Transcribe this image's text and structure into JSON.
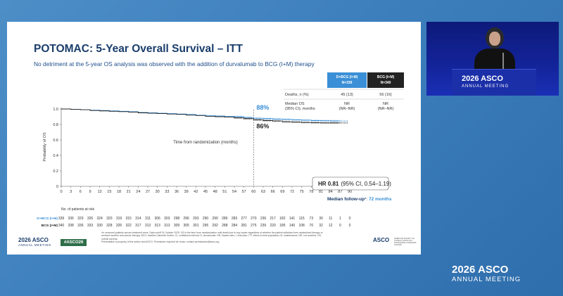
{
  "slide": {
    "title": "POTOMAC: 5-Year Overall Survival – ITT",
    "subtitle": "No detriment at the 5-year OS analysis was observed with the addition of durvalumab to BCG (I+M) therapy",
    "table": {
      "col1_line1": "D+BCG (I+M)",
      "col1_line2": "N=339",
      "col2_line1": "BCG (I+M)",
      "col2_line2": "N=340",
      "row1_label": "Deaths, n (%)",
      "row1_val1": "45 (13)",
      "row1_val2": "56 (16)",
      "row2_label1": "Median OS",
      "row2_label2": "(95% CI), months",
      "row2_val1_a": "NR",
      "row2_val1_b": "(NR–NR)",
      "row2_val2_a": "NR",
      "row2_val2_b": "(NR–NR)",
      "col1_color": "#3a8fd6",
      "col2_color": "#222222"
    },
    "hr_bold": "HR 0.81",
    "hr_rest": "(95% CI, 0.54–1.19)",
    "median_fu_label": "Median follow-up",
    "median_fu_sup": "a",
    "median_fu_sep": ": ",
    "median_fu_value": "72 months",
    "at_risk_title": "No. of patients at risk",
    "at_risk_label1": "D+BCG (I+M)",
    "at_risk_label2": "BCG (I+M)",
    "at_risk_row1": [
      "339",
      "336",
      "329",
      "326",
      "324",
      "320",
      "319",
      "315",
      "314",
      "311",
      "306",
      "303",
      "298",
      "296",
      "293",
      "290",
      "290",
      "286",
      "283",
      "277",
      "270",
      "236",
      "217",
      "182",
      "141",
      "115",
      "73",
      "30",
      "11",
      "1",
      "0"
    ],
    "at_risk_row2": [
      "340",
      "338",
      "336",
      "333",
      "330",
      "328",
      "326",
      "322",
      "317",
      "313",
      "313",
      "313",
      "309",
      "305",
      "301",
      "295",
      "292",
      "288",
      "284",
      "281",
      "275",
      "239",
      "220",
      "185",
      "140",
      "108",
      "70",
      "32",
      "12",
      "0",
      "0"
    ],
    "footnotes": [
      "ᵃIn censored patients across treatment arms. Data cutoff 31 October 2025. OS is the time from randomization until death due to any cause regardless of whether the patient withdrew from randomized therapy or",
      "receives another anti-cancer therapy. BCG, bacillus Calmette-Guérin; CI, confidence interval; D, durvalumab; HR, hazard ratio; I, induction; ITT, intent-to-treat population; M, maintenance; NR, not reached; OS,",
      "overall survival.",
      "Presentation is property of the author and ASCO. Permission required for reuse; contact permissions@asco.org"
    ],
    "logo_year": "2026",
    "logo_name": "ASCO",
    "logo_meeting": "ANNUAL MEETING",
    "hashtag": "#ASCO26",
    "asco_right_name": "ASCO",
    "asco_right_tag": "AMERICAN SOCIETY OF CLINICAL ONCOLOGY",
    "asco_right_tag2": "KNOWLEDGE CONQUERS CANCER"
  },
  "video": {
    "podium_year": "2026",
    "podium_name": "ASCO",
    "podium_meeting": "ANNUAL MEETING"
  },
  "footer": {
    "year": "2026",
    "name": "ASCO",
    "meeting": "ANNUAL MEETING"
  },
  "chart_data": {
    "type": "line",
    "xlabel": "Time from randomization (months)",
    "ylabel": "Probability of OS",
    "xlim": [
      0,
      90
    ],
    "ylim": [
      0,
      1.0
    ],
    "xticks": [
      0,
      3,
      6,
      9,
      12,
      15,
      18,
      21,
      24,
      27,
      30,
      33,
      36,
      39,
      42,
      45,
      48,
      51,
      54,
      57,
      60,
      63,
      66,
      69,
      72,
      75,
      78,
      81,
      84,
      87,
      90
    ],
    "yticks": [
      "0",
      "0.2",
      "0.4",
      "0.6",
      "0.8",
      "1.0"
    ],
    "annotations": [
      {
        "text": "88%",
        "x": 60,
        "y": 0.88,
        "color": "#3a8fd6"
      },
      {
        "text": "86%",
        "x": 60,
        "y": 0.86,
        "color": "#222222"
      }
    ],
    "reference_line_x": 60,
    "series": [
      {
        "name": "D+BCG (I+M)",
        "color": "#3a8fd6",
        "x": [
          0,
          3,
          6,
          9,
          12,
          15,
          18,
          21,
          24,
          27,
          30,
          33,
          36,
          39,
          42,
          45,
          48,
          51,
          54,
          57,
          60,
          63,
          66,
          69,
          72,
          75,
          78,
          81,
          84,
          87
        ],
        "y": [
          1.0,
          0.995,
          0.99,
          0.985,
          0.98,
          0.975,
          0.97,
          0.965,
          0.955,
          0.95,
          0.945,
          0.94,
          0.935,
          0.93,
          0.92,
          0.915,
          0.91,
          0.905,
          0.9,
          0.89,
          0.88,
          0.875,
          0.87,
          0.865,
          0.86,
          0.855,
          0.85,
          0.848,
          0.846,
          0.845
        ]
      },
      {
        "name": "BCG (I+M)",
        "color": "#222222",
        "x": [
          0,
          3,
          6,
          9,
          12,
          15,
          18,
          21,
          24,
          27,
          30,
          33,
          36,
          39,
          42,
          45,
          48,
          51,
          54,
          57,
          60,
          63,
          66,
          69,
          72,
          75,
          78,
          81,
          84,
          87
        ],
        "y": [
          1.0,
          0.995,
          0.99,
          0.98,
          0.975,
          0.97,
          0.965,
          0.96,
          0.95,
          0.945,
          0.94,
          0.935,
          0.93,
          0.92,
          0.915,
          0.905,
          0.9,
          0.895,
          0.885,
          0.875,
          0.86,
          0.85,
          0.845,
          0.835,
          0.83,
          0.826,
          0.822,
          0.82,
          0.82,
          0.82
        ]
      }
    ]
  }
}
